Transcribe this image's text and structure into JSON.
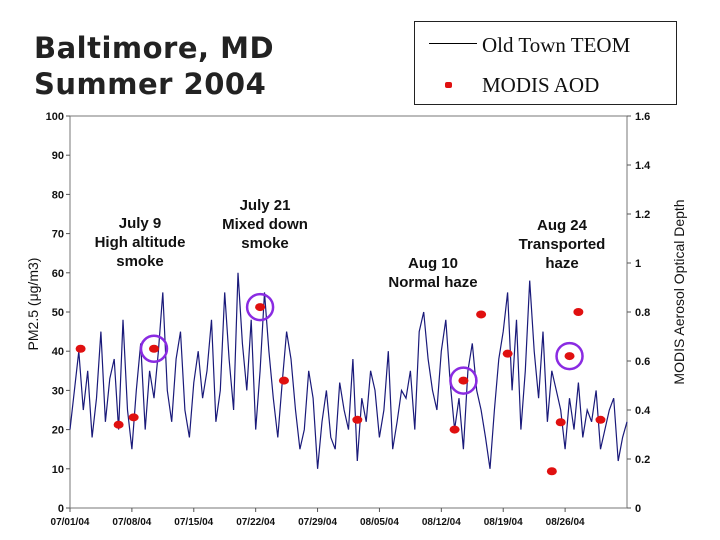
{
  "title": {
    "line1": "Baltimore, MD",
    "line2": "Summer 2004"
  },
  "legend": {
    "line_label": "Old Town TEOM",
    "dot_label": "MODIS AOD"
  },
  "chart_data": {
    "type": "line",
    "ylabel_left": "PM2.5 (μg/m3)",
    "ylabel_right": "MODIS Aerosol Optical Depth",
    "ylim_left": [
      0,
      100
    ],
    "ylim_right": [
      0,
      1.6
    ],
    "left_ticks": [
      "0",
      "10",
      "20",
      "30",
      "40",
      "50",
      "60",
      "70",
      "80",
      "90",
      "100"
    ],
    "right_ticks": [
      "0",
      "0.2",
      "0.4",
      "0.6",
      "0.8",
      "1",
      "1.2",
      "1.4",
      "1.6"
    ],
    "x_ticks": [
      "07/01/04",
      "07/08/04",
      "07/15/04",
      "07/22/04",
      "07/29/04",
      "08/05/04",
      "08/12/04",
      "08/19/04",
      "08/26/04"
    ],
    "x_range_days": [
      0,
      63
    ],
    "series": [
      {
        "name": "Old Town TEOM",
        "color": "#1a1a7a",
        "x": [
          0,
          0.5,
          1,
          1.5,
          2,
          2.5,
          3,
          3.5,
          4,
          4.5,
          5,
          5.5,
          6,
          6.5,
          7,
          7.5,
          8,
          8.5,
          9,
          9.5,
          10,
          10.5,
          11,
          11.5,
          12,
          12.5,
          13,
          13.5,
          14,
          14.5,
          15,
          15.5,
          16,
          16.5,
          17,
          17.5,
          18,
          18.5,
          19,
          19.5,
          20,
          20.5,
          21,
          21.5,
          22,
          22.5,
          23,
          23.5,
          24,
          24.5,
          25,
          25.5,
          26,
          26.5,
          27,
          27.5,
          28,
          28.5,
          29,
          29.5,
          30,
          30.5,
          31,
          31.5,
          32,
          32.5,
          33,
          33.5,
          34,
          34.5,
          35,
          35.5,
          36,
          36.5,
          37,
          37.5,
          38,
          38.5,
          39,
          39.5,
          40,
          40.5,
          41,
          41.5,
          42,
          42.5,
          43,
          43.5,
          44,
          44.5,
          45,
          45.5,
          46,
          46.5,
          47,
          47.5,
          48,
          48.5,
          49,
          49.5,
          50,
          50.5,
          51,
          51.5,
          52,
          52.5,
          53,
          53.5,
          54,
          54.5,
          55,
          55.5,
          56,
          56.5,
          57,
          57.5,
          58,
          58.5,
          59,
          59.5,
          60,
          60.5,
          61,
          61.5,
          62,
          62.5,
          63
        ],
        "values": [
          20,
          30,
          40,
          25,
          35,
          18,
          28,
          45,
          22,
          33,
          38,
          20,
          48,
          25,
          15,
          30,
          42,
          20,
          35,
          28,
          40,
          55,
          30,
          22,
          38,
          45,
          25,
          18,
          32,
          40,
          28,
          35,
          48,
          22,
          30,
          55,
          38,
          25,
          60,
          42,
          30,
          48,
          20,
          35,
          55,
          40,
          28,
          18,
          32,
          45,
          38,
          25,
          15,
          20,
          35,
          28,
          10,
          22,
          30,
          18,
          15,
          32,
          25,
          20,
          38,
          12,
          28,
          22,
          35,
          30,
          18,
          25,
          40,
          15,
          22,
          30,
          28,
          35,
          20,
          45,
          50,
          38,
          30,
          25,
          40,
          48,
          32,
          20,
          28,
          15,
          35,
          42,
          30,
          25,
          18,
          10,
          25,
          38,
          45,
          55,
          30,
          48,
          20,
          35,
          58,
          40,
          28,
          45,
          22,
          35,
          30,
          25,
          15,
          28,
          20,
          32,
          18,
          25,
          22,
          30,
          15,
          20,
          25,
          28,
          12,
          18,
          22
        ]
      },
      {
        "name": "MODIS AOD",
        "color": "#e01010",
        "x": [
          1.2,
          5.5,
          7.2,
          9.5,
          21.5,
          24.2,
          32.5,
          43.5,
          44.5,
          46.5,
          49.5,
          54.5,
          55.5,
          56.5,
          57.5,
          60
        ],
        "values": [
          0.65,
          0.34,
          0.37,
          0.65,
          0.82,
          0.52,
          0.36,
          0.32,
          0.52,
          0.79,
          0.63,
          0.15,
          0.35,
          0.62,
          0.8,
          0.36
        ]
      }
    ],
    "annotations": [
      {
        "lines": [
          "July 9",
          "High altitude",
          "smoke"
        ],
        "circle_x": 9.5,
        "circle_aod": 0.65
      },
      {
        "lines": [
          "July 21",
          "Mixed down",
          "smoke"
        ],
        "circle_x": 21.5,
        "circle_aod": 0.82
      },
      {
        "lines": [
          "Aug 10",
          "Normal haze"
        ],
        "circle_x": 44.5,
        "circle_aod": 0.52
      },
      {
        "lines": [
          "Aug 24",
          "Transported",
          "haze"
        ],
        "circle_x": 56.5,
        "circle_aod": 0.62
      }
    ]
  }
}
